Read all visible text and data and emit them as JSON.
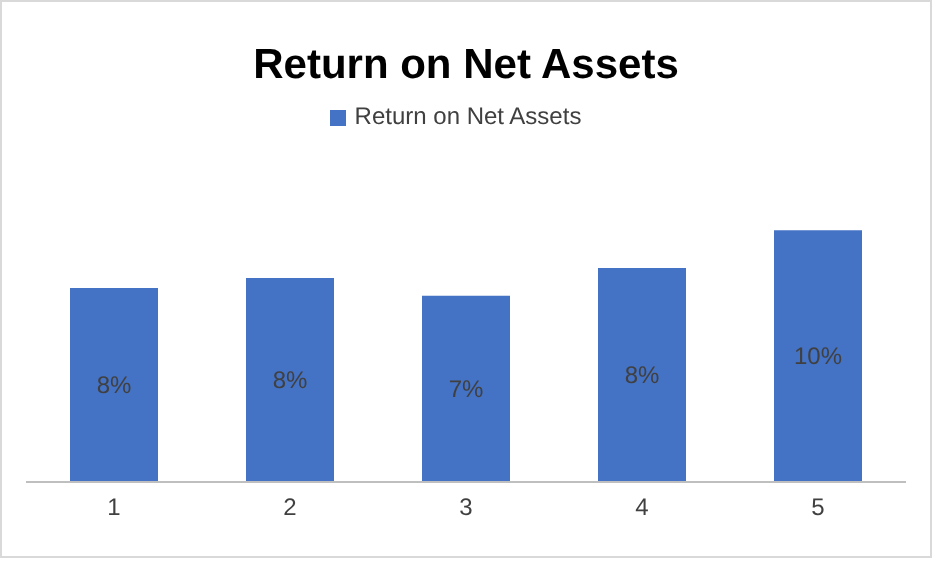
{
  "chart_data": {
    "type": "bar",
    "title": "Return on Net Assets",
    "categories": [
      "1",
      "2",
      "3",
      "4",
      "5"
    ],
    "series": [
      {
        "name": "Return on Net Assets",
        "color": "#4472c4",
        "values": [
          7.7,
          8.1,
          7.4,
          8.5,
          10
        ],
        "value_labels": [
          "8%",
          "8%",
          "7%",
          "8%",
          "10%"
        ]
      }
    ],
    "legend": "top",
    "grid": false
  }
}
